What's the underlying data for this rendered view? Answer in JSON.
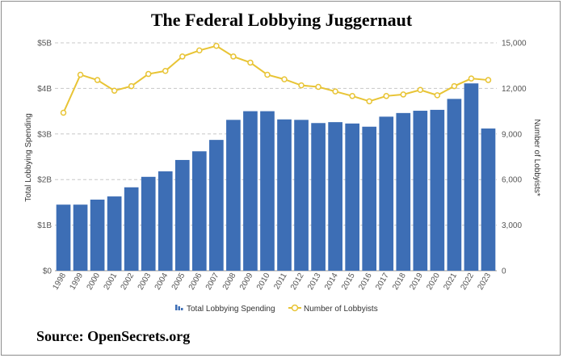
{
  "source": "Source: OpenSecrets.org",
  "chart_data": {
    "type": "bar",
    "title": "The Federal Lobbying Juggernaut",
    "categories": [
      "1998",
      "1999",
      "2000",
      "2001",
      "2002",
      "2003",
      "2004",
      "2005",
      "2006",
      "2007",
      "2008",
      "2009",
      "2010",
      "2011",
      "2012",
      "2013",
      "2014",
      "2015",
      "2016",
      "2017",
      "2018",
      "2019",
      "2020",
      "2021",
      "2022",
      "2023"
    ],
    "ylabel": "Total Lobbying Spending",
    "y2label": "Number of Lobbyists*",
    "ylim": [
      0,
      5
    ],
    "y2lim": [
      0,
      15000
    ],
    "yticks": [
      "$0",
      "$1B",
      "$2B",
      "$3B",
      "$4B",
      "$5B"
    ],
    "y2ticks": [
      "0",
      "3,000",
      "6,000",
      "9,000",
      "12,000",
      "15,000"
    ],
    "grid": true,
    "legend": "bottom",
    "series": [
      {
        "name": "Total Lobbying Spending",
        "type": "bar",
        "axis": "left",
        "color": "#3d6eb5",
        "values": [
          1.45,
          1.45,
          1.56,
          1.63,
          1.83,
          2.06,
          2.18,
          2.43,
          2.62,
          2.87,
          3.31,
          3.5,
          3.5,
          3.32,
          3.31,
          3.24,
          3.26,
          3.23,
          3.16,
          3.38,
          3.46,
          3.51,
          3.53,
          3.77,
          4.11,
          3.12
        ]
      },
      {
        "name": "Number of Lobbyists",
        "type": "line",
        "axis": "right",
        "color": "#e8c435",
        "values": [
          10400,
          12900,
          12550,
          11850,
          12150,
          12950,
          13150,
          14100,
          14500,
          14800,
          14100,
          13700,
          12900,
          12600,
          12200,
          12100,
          11800,
          11500,
          11150,
          11500,
          11600,
          11900,
          11550,
          12150,
          12650,
          12550
        ]
      }
    ]
  }
}
